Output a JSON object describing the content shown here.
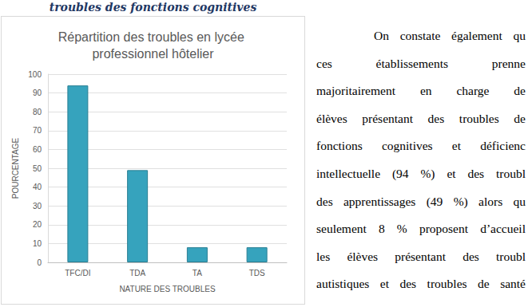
{
  "heading": "troubles des fonctions cognitives",
  "chart_data": {
    "type": "bar",
    "title": "Répartition des troubles en lycée professionnel hôtelier",
    "x_label": "NATURE DES TROUBLES",
    "y_label": "POURCENTAGE",
    "categories": [
      "TFC/DI",
      "TDA",
      "TA",
      "TDS"
    ],
    "values": [
      94,
      49,
      8,
      8
    ],
    "color": "#36a3bd",
    "ylim": [
      0,
      100
    ],
    "yticks": [
      0,
      10,
      20,
      30,
      40,
      50,
      60,
      70,
      80,
      90,
      100
    ],
    "grid": true
  },
  "paragraph": {
    "lines": [
      "On constate également qu",
      "ces établissements prenne",
      "majoritairement en charge de",
      "élèves présentant des troubles de",
      "fonctions cognitives et déficienc",
      "intellectuelle (94 %) et des troubl",
      "des apprentissages (49 %) alors qu",
      "seulement 8 % proposent d’accueil",
      "les élèves présentant des troubl",
      "autistiques et des troubles de santé"
    ]
  }
}
